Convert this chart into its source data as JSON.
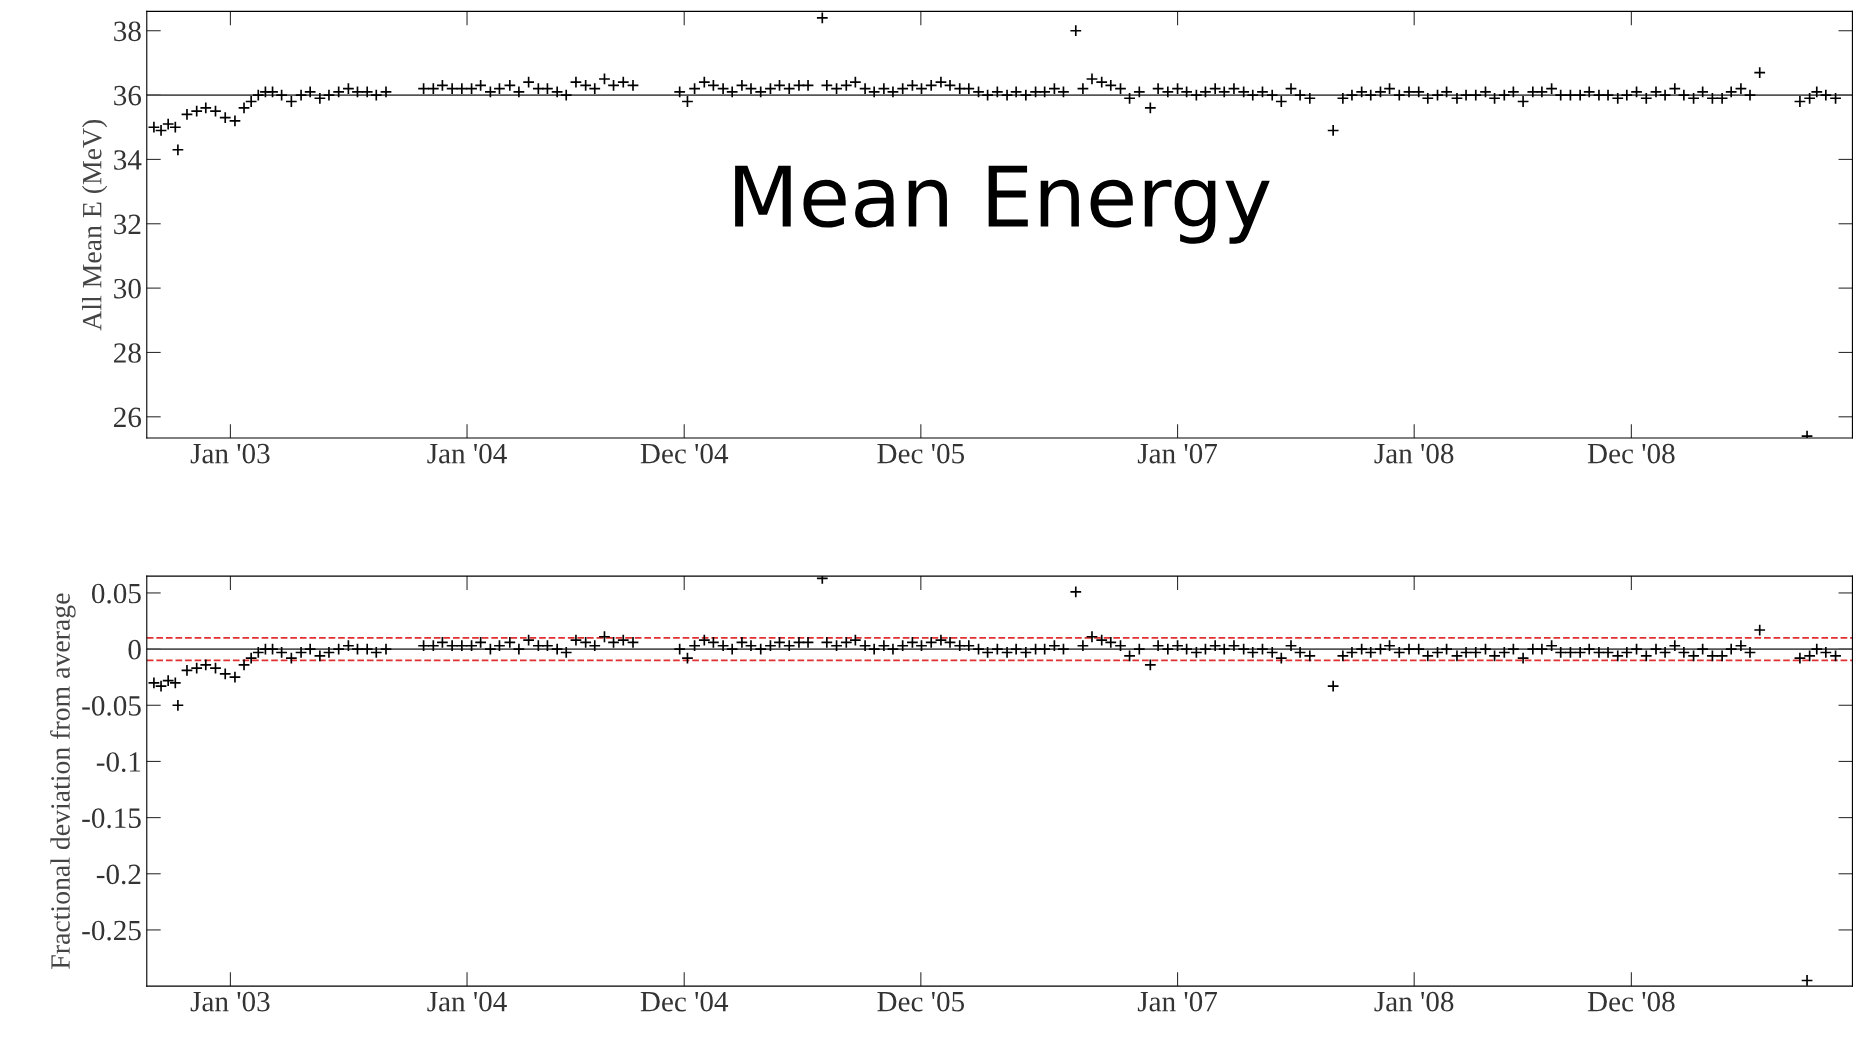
{
  "chart_data": [
    {
      "type": "scatter",
      "ylabel": "All Mean E (MeV)",
      "annotations": [
        "Mean Energy"
      ],
      "marker": "cross",
      "grid": false,
      "xlim": [
        "2002-08-25",
        "2009-11-07"
      ],
      "xticks": [
        {
          "value": "2003-01-01",
          "label": "Jan '03"
        },
        {
          "value": "2004-01-01",
          "label": "Jan '04"
        },
        {
          "value": "2004-12-01",
          "label": "Dec '04"
        },
        {
          "value": "2005-12-01",
          "label": "Dec '05"
        },
        {
          "value": "2007-01-01",
          "label": "Jan '07"
        },
        {
          "value": "2008-01-01",
          "label": "Jan '08"
        },
        {
          "value": "2008-12-01",
          "label": "Dec '08"
        }
      ],
      "ylim": [
        25.34,
        38.6
      ],
      "yticks": [
        26,
        28,
        30,
        32,
        34,
        36,
        38
      ],
      "ref_lines": [
        {
          "axis": "y",
          "value": 36,
          "color": "#555555",
          "line_style": "solid"
        }
      ],
      "series": [
        {
          "color": "#000000",
          "x": [
            "2002-09-05",
            "2002-09-16",
            "2002-09-27",
            "2002-10-08",
            "2002-10-12",
            "2002-10-26",
            "2002-11-10",
            "2002-11-24",
            "2002-12-09",
            "2002-12-24",
            "2003-01-08",
            "2003-01-22",
            "2003-02-02",
            "2003-02-13",
            "2003-02-24",
            "2003-03-07",
            "2003-03-21",
            "2003-04-05",
            "2003-04-20",
            "2003-05-04",
            "2003-05-19",
            "2003-06-02",
            "2003-06-17",
            "2003-07-02",
            "2003-07-16",
            "2003-07-31",
            "2003-08-14",
            "2003-08-29",
            "2003-10-26",
            "2003-11-10",
            "2003-11-24",
            "2003-12-09",
            "2003-12-24",
            "2004-01-08",
            "2004-01-22",
            "2004-02-06",
            "2004-02-20",
            "2004-03-07",
            "2004-03-21",
            "2004-04-05",
            "2004-04-20",
            "2004-05-04",
            "2004-05-19",
            "2004-06-02",
            "2004-06-17",
            "2004-07-02",
            "2004-07-16",
            "2004-07-31",
            "2004-08-14",
            "2004-08-29",
            "2004-09-13",
            "2004-11-24",
            "2004-12-06",
            "2004-12-17",
            "2005-01-01",
            "2005-01-15",
            "2005-01-30",
            "2005-02-13",
            "2005-02-28",
            "2005-03-14",
            "2005-03-29",
            "2005-04-13",
            "2005-04-27",
            "2005-05-12",
            "2005-05-27",
            "2005-06-10",
            "2005-07-02",
            "2005-07-09",
            "2005-07-24",
            "2005-08-08",
            "2005-08-22",
            "2005-09-06",
            "2005-09-20",
            "2005-10-05",
            "2005-10-19",
            "2005-11-03",
            "2005-11-18",
            "2005-12-02",
            "2005-12-17",
            "2006-01-01",
            "2006-01-15",
            "2006-01-30",
            "2006-02-13",
            "2006-02-28",
            "2006-03-14",
            "2006-03-29",
            "2006-04-13",
            "2006-04-27",
            "2006-05-12",
            "2006-05-27",
            "2006-06-10",
            "2006-06-25",
            "2006-07-09",
            "2006-07-28",
            "2006-08-08",
            "2006-08-22",
            "2006-09-06",
            "2006-09-20",
            "2006-10-05",
            "2006-10-19",
            "2006-11-03",
            "2006-11-20",
            "2006-12-02",
            "2006-12-17",
            "2007-01-01",
            "2007-01-15",
            "2007-01-30",
            "2007-02-13",
            "2007-02-28",
            "2007-03-14",
            "2007-03-29",
            "2007-04-13",
            "2007-04-27",
            "2007-05-12",
            "2007-05-27",
            "2007-06-10",
            "2007-06-25",
            "2007-07-09",
            "2007-07-24",
            "2007-08-29",
            "2007-09-13",
            "2007-09-27",
            "2007-10-12",
            "2007-10-26",
            "2007-11-10",
            "2007-11-24",
            "2007-12-09",
            "2007-12-24",
            "2008-01-08",
            "2008-01-22",
            "2008-02-06",
            "2008-02-20",
            "2008-03-07",
            "2008-03-21",
            "2008-04-05",
            "2008-04-20",
            "2008-05-04",
            "2008-05-19",
            "2008-06-02",
            "2008-06-17",
            "2008-07-02",
            "2008-07-16",
            "2008-07-31",
            "2008-08-14",
            "2008-08-29",
            "2008-09-13",
            "2008-09-27",
            "2008-10-12",
            "2008-10-26",
            "2008-11-10",
            "2008-11-24",
            "2008-12-09",
            "2008-12-24",
            "2009-01-08",
            "2009-01-22",
            "2009-02-06",
            "2009-02-20",
            "2009-03-07",
            "2009-03-21",
            "2009-04-05",
            "2009-04-20",
            "2009-05-04",
            "2009-05-19",
            "2009-06-02",
            "2009-06-17",
            "2009-08-18",
            "2009-08-29",
            "2009-09-02",
            "2009-09-13",
            "2009-09-27",
            "2009-10-12"
          ],
          "values": [
            35.0,
            34.9,
            35.1,
            35.0,
            34.3,
            35.4,
            35.5,
            35.6,
            35.5,
            35.3,
            35.2,
            35.6,
            35.8,
            36.0,
            36.1,
            36.1,
            36.0,
            35.8,
            36.0,
            36.1,
            35.9,
            36.0,
            36.1,
            36.2,
            36.1,
            36.1,
            36.0,
            36.1,
            36.2,
            36.2,
            36.3,
            36.2,
            36.2,
            36.2,
            36.3,
            36.1,
            36.2,
            36.3,
            36.1,
            36.4,
            36.2,
            36.2,
            36.1,
            36.0,
            36.4,
            36.3,
            36.2,
            36.5,
            36.3,
            36.4,
            36.3,
            36.1,
            35.8,
            36.2,
            36.4,
            36.3,
            36.2,
            36.1,
            36.3,
            36.2,
            36.1,
            36.2,
            36.3,
            36.2,
            36.3,
            36.3,
            38.4,
            36.3,
            36.2,
            36.3,
            36.4,
            36.2,
            36.1,
            36.2,
            36.1,
            36.2,
            36.3,
            36.2,
            36.3,
            36.4,
            36.3,
            36.2,
            36.2,
            36.1,
            36.0,
            36.1,
            36.0,
            36.1,
            36.0,
            36.1,
            36.1,
            36.2,
            36.1,
            38.0,
            36.2,
            36.5,
            36.4,
            36.3,
            36.2,
            35.9,
            36.1,
            35.6,
            36.2,
            36.1,
            36.2,
            36.1,
            36.0,
            36.1,
            36.2,
            36.1,
            36.2,
            36.1,
            36.0,
            36.1,
            36.0,
            35.8,
            36.2,
            36.0,
            35.9,
            34.9,
            35.9,
            36.0,
            36.1,
            36.0,
            36.1,
            36.2,
            36.0,
            36.1,
            36.1,
            35.9,
            36.0,
            36.1,
            35.9,
            36.0,
            36.0,
            36.1,
            35.9,
            36.0,
            36.1,
            35.8,
            36.1,
            36.1,
            36.2,
            36.0,
            36.0,
            36.0,
            36.1,
            36.0,
            36.0,
            35.9,
            36.0,
            36.1,
            35.9,
            36.1,
            36.0,
            36.2,
            36.0,
            35.9,
            36.1,
            35.9,
            35.9,
            36.1,
            36.2,
            36.0,
            36.7,
            35.8,
            25.4,
            35.9,
            36.1,
            36.0,
            35.9
          ]
        }
      ]
    },
    {
      "type": "scatter",
      "ylabel": "Fractional deviation from average",
      "marker": "cross",
      "grid": false,
      "xlim": [
        "2002-08-25",
        "2009-11-07"
      ],
      "xticks": [
        {
          "value": "2003-01-01",
          "label": "Jan '03"
        },
        {
          "value": "2004-01-01",
          "label": "Jan '04"
        },
        {
          "value": "2004-12-01",
          "label": "Dec '04"
        },
        {
          "value": "2005-12-01",
          "label": "Dec '05"
        },
        {
          "value": "2007-01-01",
          "label": "Jan '07"
        },
        {
          "value": "2008-01-01",
          "label": "Jan '08"
        },
        {
          "value": "2008-12-01",
          "label": "Dec '08"
        }
      ],
      "ylim": [
        -0.3,
        0.065
      ],
      "yticks": [
        0.05,
        0,
        -0.05,
        -0.1,
        -0.15,
        -0.2,
        -0.25
      ],
      "ref_lines": [
        {
          "axis": "y",
          "value": 0,
          "color": "#555555",
          "line_style": "solid"
        },
        {
          "axis": "y",
          "value": 0.01,
          "color": "#e03030",
          "line_style": "dashed"
        },
        {
          "axis": "y",
          "value": -0.01,
          "color": "#e03030",
          "line_style": "dashed"
        }
      ],
      "series": [
        {
          "color": "#000000",
          "x": [
            "2002-09-05",
            "2002-09-16",
            "2002-09-27",
            "2002-10-08",
            "2002-10-12",
            "2002-10-26",
            "2002-11-10",
            "2002-11-24",
            "2002-12-09",
            "2002-12-24",
            "2003-01-08",
            "2003-01-22",
            "2003-02-02",
            "2003-02-13",
            "2003-02-24",
            "2003-03-07",
            "2003-03-21",
            "2003-04-05",
            "2003-04-20",
            "2003-05-04",
            "2003-05-19",
            "2003-06-02",
            "2003-06-17",
            "2003-07-02",
            "2003-07-16",
            "2003-07-31",
            "2003-08-14",
            "2003-08-29",
            "2003-10-26",
            "2003-11-10",
            "2003-11-24",
            "2003-12-09",
            "2003-12-24",
            "2004-01-08",
            "2004-01-22",
            "2004-02-06",
            "2004-02-20",
            "2004-03-07",
            "2004-03-21",
            "2004-04-05",
            "2004-04-20",
            "2004-05-04",
            "2004-05-19",
            "2004-06-02",
            "2004-06-17",
            "2004-07-02",
            "2004-07-16",
            "2004-07-31",
            "2004-08-14",
            "2004-08-29",
            "2004-09-13",
            "2004-11-24",
            "2004-12-06",
            "2004-12-17",
            "2005-01-01",
            "2005-01-15",
            "2005-01-30",
            "2005-02-13",
            "2005-02-28",
            "2005-03-14",
            "2005-03-29",
            "2005-04-13",
            "2005-04-27",
            "2005-05-12",
            "2005-05-27",
            "2005-06-10",
            "2005-07-02",
            "2005-07-09",
            "2005-07-24",
            "2005-08-08",
            "2005-08-22",
            "2005-09-06",
            "2005-09-20",
            "2005-10-05",
            "2005-10-19",
            "2005-11-03",
            "2005-11-18",
            "2005-12-02",
            "2005-12-17",
            "2006-01-01",
            "2006-01-15",
            "2006-01-30",
            "2006-02-13",
            "2006-02-28",
            "2006-03-14",
            "2006-03-29",
            "2006-04-13",
            "2006-04-27",
            "2006-05-12",
            "2006-05-27",
            "2006-06-10",
            "2006-06-25",
            "2006-07-09",
            "2006-07-28",
            "2006-08-08",
            "2006-08-22",
            "2006-09-06",
            "2006-09-20",
            "2006-10-05",
            "2006-10-19",
            "2006-11-03",
            "2006-11-20",
            "2006-12-02",
            "2006-12-17",
            "2007-01-01",
            "2007-01-15",
            "2007-01-30",
            "2007-02-13",
            "2007-02-28",
            "2007-03-14",
            "2007-03-29",
            "2007-04-13",
            "2007-04-27",
            "2007-05-12",
            "2007-05-27",
            "2007-06-10",
            "2007-06-25",
            "2007-07-09",
            "2007-07-24",
            "2007-08-29",
            "2007-09-13",
            "2007-09-27",
            "2007-10-12",
            "2007-10-26",
            "2007-11-10",
            "2007-11-24",
            "2007-12-09",
            "2007-12-24",
            "2008-01-08",
            "2008-01-22",
            "2008-02-06",
            "2008-02-20",
            "2008-03-07",
            "2008-03-21",
            "2008-04-05",
            "2008-04-20",
            "2008-05-04",
            "2008-05-19",
            "2008-06-02",
            "2008-06-17",
            "2008-07-02",
            "2008-07-16",
            "2008-07-31",
            "2008-08-14",
            "2008-08-29",
            "2008-09-13",
            "2008-09-27",
            "2008-10-12",
            "2008-10-26",
            "2008-11-10",
            "2008-11-24",
            "2008-12-09",
            "2008-12-24",
            "2009-01-08",
            "2009-01-22",
            "2009-02-06",
            "2009-02-20",
            "2009-03-07",
            "2009-03-21",
            "2009-04-05",
            "2009-04-20",
            "2009-05-04",
            "2009-05-19",
            "2009-06-02",
            "2009-06-17",
            "2009-08-18",
            "2009-08-29",
            "2009-09-02",
            "2009-09-13",
            "2009-09-27",
            "2009-10-12"
          ],
          "values": [
            -0.03,
            -0.033,
            -0.028,
            -0.03,
            -0.05,
            -0.019,
            -0.017,
            -0.014,
            -0.017,
            -0.022,
            -0.025,
            -0.014,
            -0.008,
            -0.003,
            0,
            0,
            -0.003,
            -0.008,
            -0.003,
            0,
            -0.006,
            -0.003,
            0,
            0.003,
            0,
            0,
            -0.003,
            0,
            0.003,
            0.003,
            0.006,
            0.003,
            0.003,
            0.003,
            0.006,
            0,
            0.003,
            0.006,
            0,
            0.008,
            0.003,
            0.003,
            0,
            -0.003,
            0.008,
            0.006,
            0.003,
            0.011,
            0.006,
            0.008,
            0.006,
            0,
            -0.008,
            0.003,
            0.008,
            0.006,
            0.003,
            0,
            0.006,
            0.003,
            0,
            0.003,
            0.006,
            0.003,
            0.006,
            0.006,
            0.063,
            0.006,
            0.003,
            0.006,
            0.008,
            0.003,
            0,
            0.003,
            0,
            0.003,
            0.006,
            0.003,
            0.006,
            0.008,
            0.006,
            0.003,
            0.003,
            0,
            -0.003,
            0,
            -0.003,
            0,
            -0.003,
            0,
            0,
            0.003,
            0,
            0.051,
            0.003,
            0.011,
            0.008,
            0.006,
            0.003,
            -0.006,
            0,
            -0.014,
            0.003,
            0,
            0.003,
            0,
            -0.003,
            0,
            0.003,
            0,
            0.003,
            0,
            -0.003,
            0,
            -0.003,
            -0.008,
            0.003,
            -0.003,
            -0.006,
            -0.033,
            -0.006,
            -0.003,
            0,
            -0.003,
            0,
            0.003,
            -0.003,
            0,
            0,
            -0.006,
            -0.003,
            0,
            -0.006,
            -0.003,
            -0.003,
            0,
            -0.006,
            -0.003,
            0,
            -0.008,
            0,
            0,
            0.003,
            -0.003,
            -0.003,
            -0.003,
            0,
            -0.003,
            -0.003,
            -0.006,
            -0.003,
            0,
            -0.006,
            0,
            -0.003,
            0.003,
            -0.003,
            -0.006,
            0,
            -0.006,
            -0.006,
            0,
            0.003,
            -0.003,
            0.017,
            -0.008,
            -0.295,
            -0.006,
            0,
            -0.003,
            -0.006
          ]
        }
      ]
    }
  ]
}
